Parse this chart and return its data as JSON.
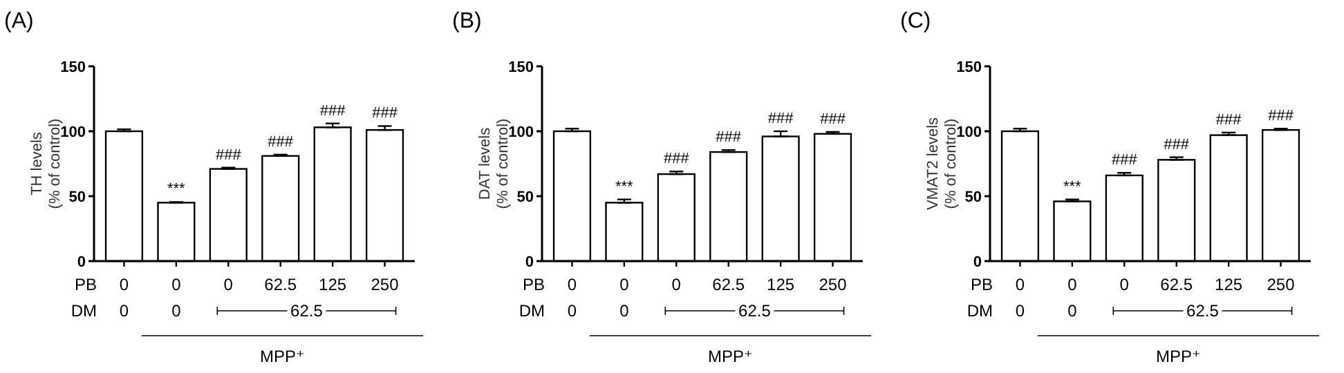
{
  "chart_data": [
    {
      "type": "bar",
      "title": "(A)",
      "ylabel": "TH levels\n(% of control)",
      "xlabel": "PB",
      "categories": [
        "0",
        "0",
        "0",
        "62.5",
        "125",
        "250"
      ],
      "values": [
        100,
        45,
        71,
        81,
        103,
        101
      ],
      "errors": [
        [
          100,
          101.5
        ],
        [
          45,
          45.5
        ],
        [
          71,
          72
        ],
        [
          81,
          82
        ],
        [
          103,
          106
        ],
        [
          101,
          104
        ]
      ],
      "value_labels": [
        null,
        "***",
        "###",
        "###",
        "###",
        "###"
      ],
      "color": "#ffffff",
      "ylim": [
        0,
        150
      ],
      "yticks": [
        0,
        50,
        100,
        150
      ],
      "grid": false,
      "annotations": [
        "DM",
        "0",
        "0",
        "62.5",
        "MPP⁺"
      ]
    },
    {
      "type": "bar",
      "title": "(B)",
      "ylabel": "DAT levels\n(% of control)",
      "xlabel": "PB",
      "categories": [
        "0",
        "0",
        "0",
        "62.5",
        "125",
        "250"
      ],
      "values": [
        100,
        45,
        67,
        84,
        96,
        98
      ],
      "errors": [
        [
          100,
          102
        ],
        [
          45,
          47.5
        ],
        [
          67,
          69
        ],
        [
          84,
          85.5
        ],
        [
          96,
          100
        ],
        [
          98,
          99.5
        ]
      ],
      "value_labels": [
        null,
        "***",
        "###",
        "###",
        "###",
        "###"
      ],
      "color": "#ffffff",
      "ylim": [
        0,
        150
      ],
      "yticks": [
        0,
        50,
        100,
        150
      ],
      "grid": false,
      "annotations": [
        "DM",
        "0",
        "0",
        "62.5",
        "MPP⁺"
      ]
    },
    {
      "type": "bar",
      "title": "(C)",
      "ylabel": "VMAT2 levels\n(% of control)",
      "xlabel": "PB",
      "categories": [
        "0",
        "0",
        "0",
        "62.5",
        "125",
        "250"
      ],
      "values": [
        100,
        46,
        66,
        78,
        97,
        101
      ],
      "errors": [
        [
          100,
          102
        ],
        [
          46,
          47.5
        ],
        [
          66,
          68
        ],
        [
          78,
          80
        ],
        [
          97,
          99
        ],
        [
          101,
          102
        ]
      ],
      "value_labels": [
        null,
        "***",
        "###",
        "###",
        "###",
        "###"
      ],
      "color": "#ffffff",
      "ylim": [
        0,
        150
      ],
      "yticks": [
        0,
        50,
        100,
        150
      ],
      "grid": false,
      "annotations": [
        "DM",
        "0",
        "0",
        "62.5",
        "MPP⁺"
      ]
    }
  ]
}
